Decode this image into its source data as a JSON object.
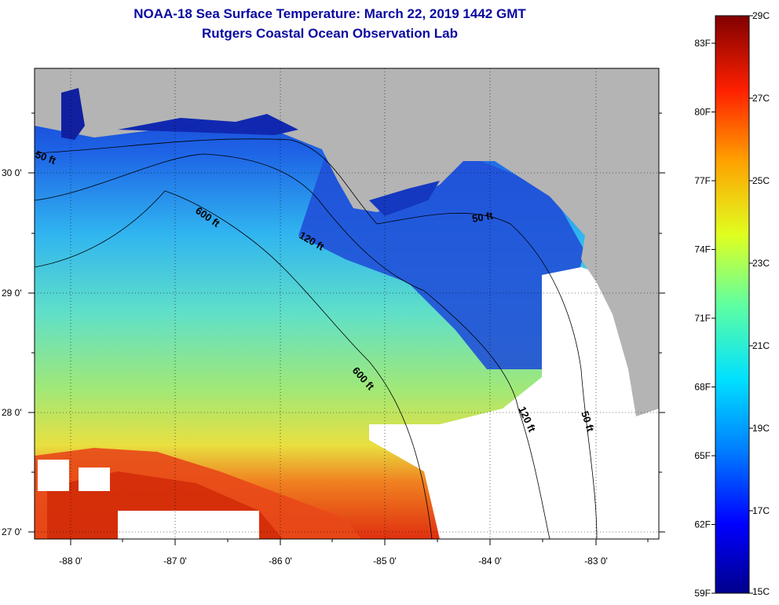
{
  "title": {
    "line1": "NOAA-18 Sea Surface Temperature:  March 22, 2019 1442 GMT",
    "line2": "Rutgers Coastal Ocean Observation Lab"
  },
  "map": {
    "lon_labels": [
      "-88 0'",
      "-87 0'",
      "-86 0'",
      "-85 0'",
      "-84 0'",
      "-83 0'"
    ],
    "lat_labels": [
      "30 0'",
      "29 0'",
      "28 0'",
      "27 0'"
    ],
    "depth_labels": [
      "50 ft",
      "600 ft",
      "120 ft",
      "50 ft",
      "600 ft",
      "120 ft",
      "50 ft"
    ],
    "colors": {
      "land": "#b4b4b4",
      "cloud": "#ffffff"
    }
  },
  "colorbar": {
    "celsius": [
      "29C",
      "27C",
      "25C",
      "23C",
      "21C",
      "19C",
      "17C",
      "15C"
    ],
    "fahrenheit": [
      "83F",
      "80F",
      "77F",
      "74F",
      "71F",
      "68F",
      "65F",
      "62F",
      "59F"
    ],
    "range_c": [
      15,
      29
    ]
  }
}
